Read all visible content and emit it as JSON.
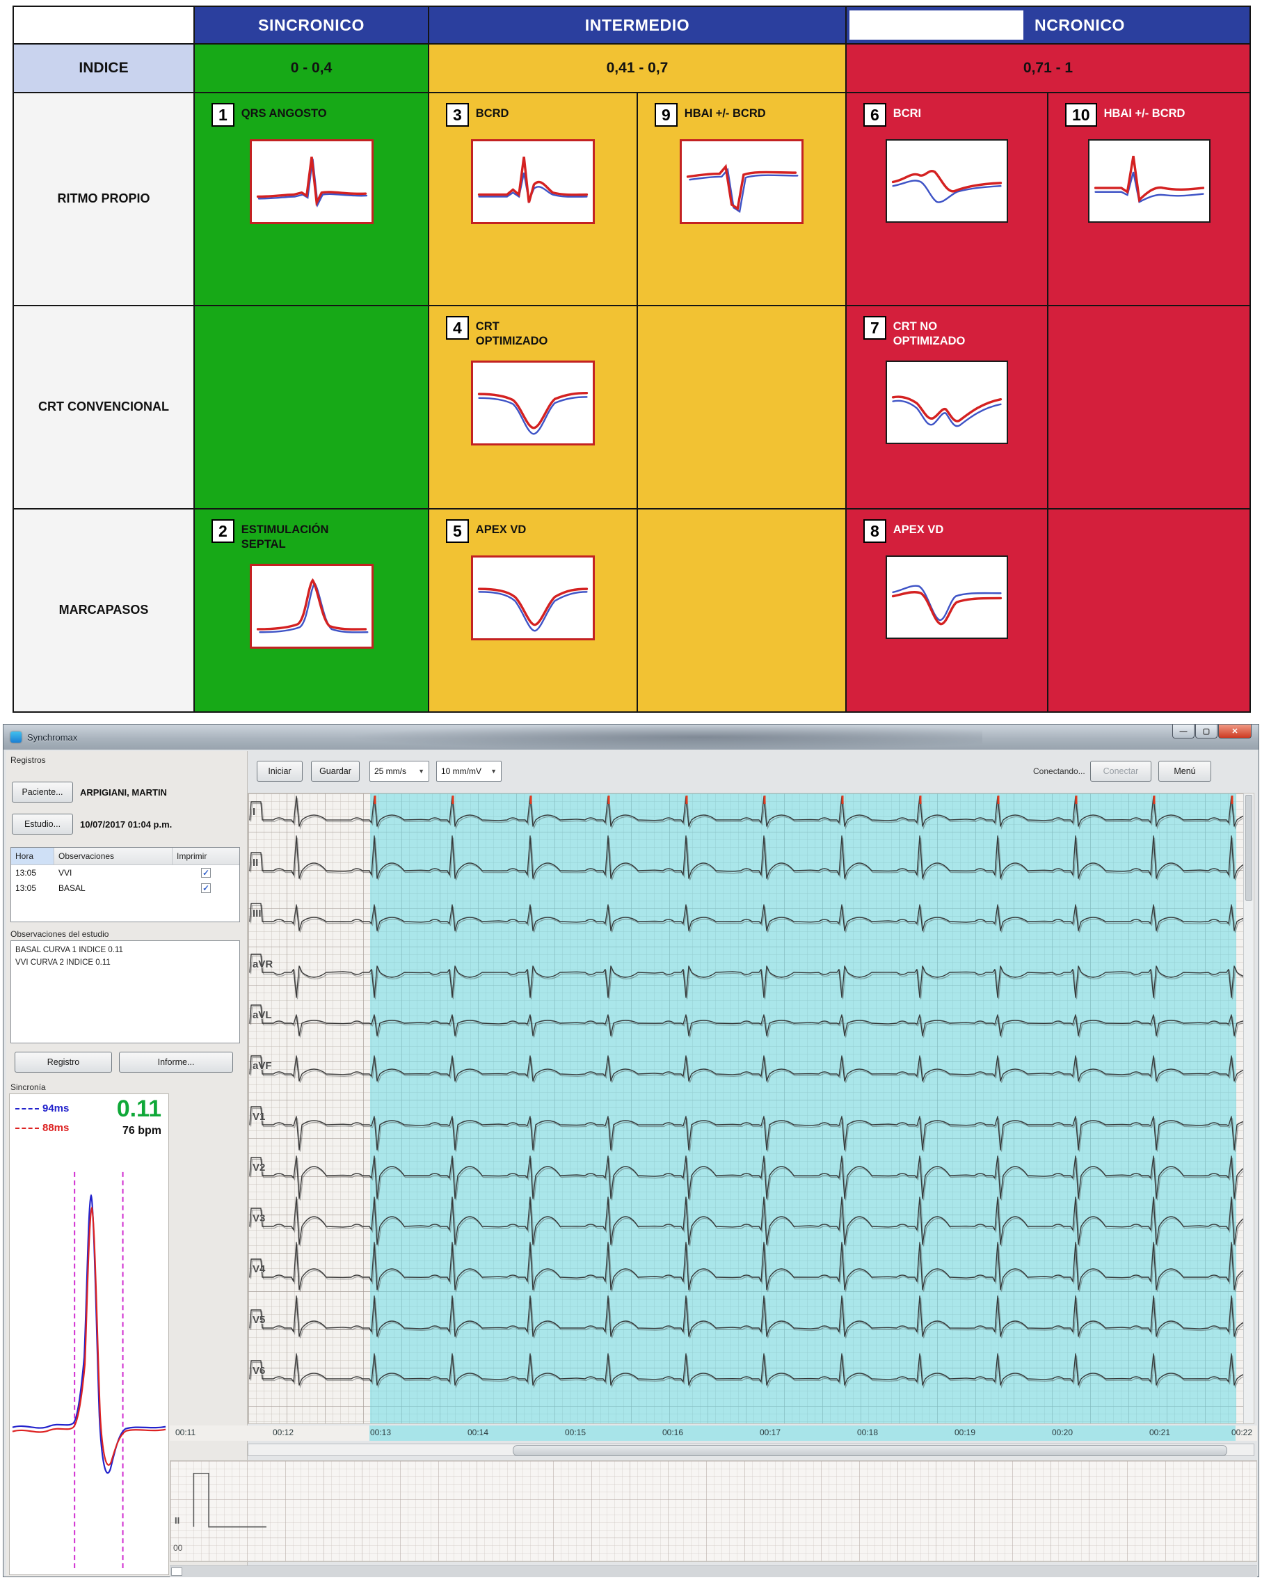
{
  "table": {
    "header_sincronico": "SINCRONICO",
    "header_intermedio": "INTERMEDIO",
    "header_asincronico_visible": "NCRONICO",
    "indice": "INDICE",
    "range_green": "0 - 0,4",
    "range_yellow": "0,41 - 0,7",
    "range_red": "0,71 - 1",
    "row1": "RITMO PROPIO",
    "row2": "CRT CONVENCIONAL",
    "row3": "MARCAPASOS",
    "cells": {
      "c1": {
        "num": "1",
        "label": "QRS ANGOSTO"
      },
      "c2": {
        "num": "2",
        "label": "ESTIMULACIÓN SEPTAL"
      },
      "c3": {
        "num": "3",
        "label": "BCRD"
      },
      "c4": {
        "num": "4",
        "label": "CRT OPTIMIZADO"
      },
      "c5": {
        "num": "5",
        "label": "APEX VD"
      },
      "c6": {
        "num": "6",
        "label": "BCRI"
      },
      "c7": {
        "num": "7",
        "label": "CRT NO OPTIMIZADO"
      },
      "c8": {
        "num": "8",
        "label": "APEX VD"
      },
      "c9": {
        "num": "9",
        "label": "HBAI +/- BCRD"
      },
      "c10": {
        "num": "10",
        "label": "HBAI +/- BCRD"
      }
    }
  },
  "window": {
    "title": "Synchromax",
    "sidebar": {
      "registros_label": "Registros",
      "paciente_button": "Paciente...",
      "paciente_value": "ARPIGIANI, MARTIN",
      "estudio_button": "Estudio...",
      "estudio_value": "10/07/2017 01:04 p.m.",
      "list": {
        "col_hora": "Hora",
        "col_observaciones": "Observaciones",
        "col_imprimir": "Imprimir",
        "rows": [
          {
            "hora": "13:05",
            "obs": "VVI"
          },
          {
            "hora": "13:05",
            "obs": "BASAL"
          }
        ]
      },
      "observaciones_label": "Observaciones del estudio",
      "observaciones_line1": "BASAL CURVA 1 INDICE 0.11",
      "observaciones_line2": "VVI CURVA 2 INDICE 0.11",
      "registro_button": "Registro",
      "informe_button": "Informe...",
      "sincronia_label": "Sincronía",
      "sincronia": {
        "blue_value": "94ms",
        "red_value": "88ms",
        "index_value": "0.11",
        "bpm_value": "76 bpm"
      }
    },
    "toolbar": {
      "iniciar": "Iniciar",
      "guardar": "Guardar",
      "speed": "25 mm/s",
      "gain": "10 mm/mV",
      "status": "Conectando...",
      "conectar": "Conectar",
      "menu": "Menú"
    },
    "ecg": {
      "leads": [
        "I",
        "II",
        "III",
        "aVR",
        "aVL",
        "aVF",
        "V1",
        "V2",
        "V3",
        "V4",
        "V5",
        "V6"
      ],
      "times": [
        "00:11",
        "00:12",
        "00:13",
        "00:14",
        "00:15",
        "00:16",
        "00:17",
        "00:18",
        "00:19",
        "00:20",
        "00:21",
        "00:22"
      ],
      "strip_lead": "II",
      "strip_time": "00"
    }
  }
}
